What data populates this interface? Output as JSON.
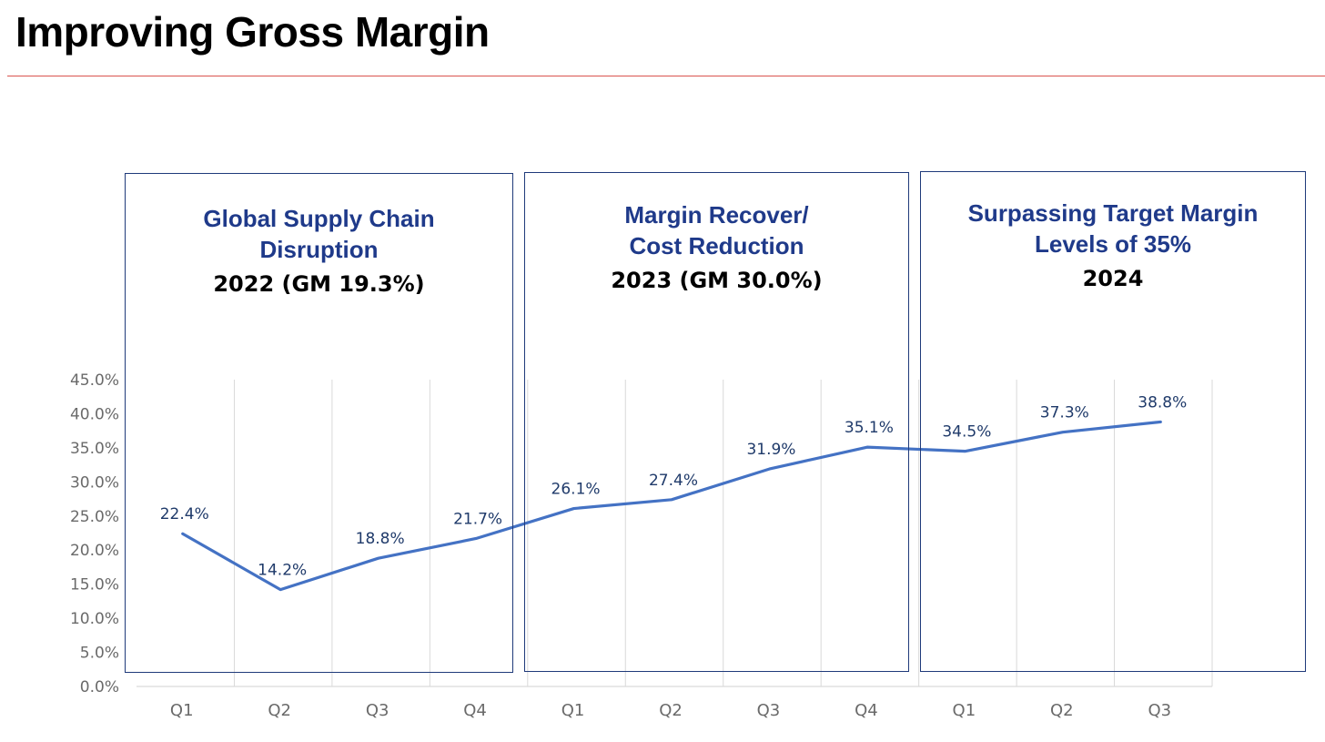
{
  "page": {
    "title": "Improving Gross Margin",
    "accent_color": "#d9534f",
    "panel_color": "#1f3a7a",
    "line_color": "#4472c4"
  },
  "panels": [
    {
      "heading_line1": "Global Supply Chain",
      "heading_line2": "Disruption",
      "subheading": "2022 (GM 19.3%)"
    },
    {
      "heading_line1": "Margin Recover/",
      "heading_line2": "Cost Reduction",
      "subheading": "2023 (GM 30.0%)"
    },
    {
      "heading_line1": "Surpassing Target Margin",
      "heading_line2": "Levels of 35%",
      "subheading": "2024"
    }
  ],
  "chart_data": {
    "type": "line",
    "categories": [
      "Q1",
      "Q2",
      "Q3",
      "Q4",
      "Q1",
      "Q2",
      "Q3",
      "Q4",
      "Q1",
      "Q2",
      "Q3"
    ],
    "values": [
      22.4,
      14.2,
      18.8,
      21.7,
      26.1,
      27.4,
      31.9,
      35.1,
      34.5,
      37.3,
      38.8
    ],
    "data_labels": [
      "22.4%",
      "14.2%",
      "18.8%",
      "21.7%",
      "26.1%",
      "27.4%",
      "31.9%",
      "35.1%",
      "34.5%",
      "37.3%",
      "38.8%"
    ],
    "ylim": [
      0,
      45
    ],
    "yticks": [
      "0.0%",
      "5.0%",
      "10.0%",
      "15.0%",
      "20.0%",
      "25.0%",
      "30.0%",
      "35.0%",
      "40.0%",
      "45.0%"
    ],
    "ytick_values": [
      0,
      5,
      10,
      15,
      20,
      25,
      30,
      35,
      40,
      45
    ],
    "grid": "vertical",
    "xlabel": "",
    "ylabel": ""
  }
}
